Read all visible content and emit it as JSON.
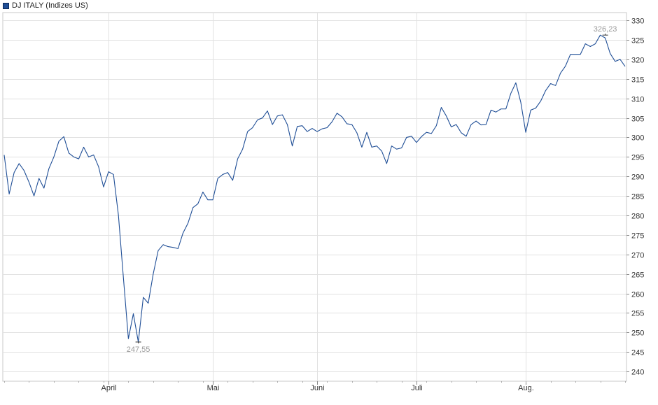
{
  "legend": {
    "label": "DJ ITALY (Indizes US)",
    "color": "#1f4e96"
  },
  "chart_data": {
    "type": "line",
    "title": "",
    "xlabel": "",
    "ylabel": "",
    "ylim": [
      237.5,
      332
    ],
    "yticks": [
      240,
      245,
      250,
      255,
      260,
      265,
      270,
      275,
      280,
      285,
      290,
      295,
      300,
      305,
      310,
      315,
      320,
      325,
      330
    ],
    "x_tick_labels": [
      {
        "label": "April",
        "index": 21
      },
      {
        "label": "Mai",
        "index": 42
      },
      {
        "label": "Juni",
        "index": 63
      },
      {
        "label": "Juli",
        "index": 83
      },
      {
        "label": "Aug.",
        "index": 105
      }
    ],
    "grid": true,
    "line_color": "#1f4e96",
    "annotations": [
      {
        "text": "326,23",
        "index": 121,
        "value": 326.23,
        "position": "above"
      },
      {
        "text": "247,55",
        "index": 27,
        "value": 247.55,
        "position": "below"
      }
    ],
    "series": [
      {
        "values": [
          295.5,
          285.5,
          291,
          293.3,
          291.5,
          288.5,
          285,
          289.5,
          287,
          292,
          295,
          299,
          300.2,
          296,
          295,
          294.5,
          297.5,
          295,
          295.5,
          292.5,
          287.3,
          291.2,
          290.5,
          280,
          264,
          248.4,
          254.8,
          247.55,
          259,
          257.5,
          265,
          271,
          272.5,
          272,
          271.8,
          271.5,
          275.5,
          278,
          282,
          283,
          286,
          284,
          284,
          289.5,
          290.5,
          291,
          289,
          294.5,
          297,
          301.5,
          302.5,
          304.5,
          305,
          306.8,
          303.3,
          305.5,
          305.8,
          303.3,
          297.8,
          302.8,
          303,
          301.5,
          302.3,
          301.5,
          302.2,
          302.5,
          304,
          306.2,
          305.3,
          303.5,
          303.3,
          301.2,
          297.5,
          301.3,
          297.5,
          297.8,
          296.5,
          293.3,
          297.8,
          297,
          297.3,
          300,
          300.3,
          298.7,
          300.2,
          301.3,
          301,
          303,
          307.7,
          305.5,
          302.7,
          303.3,
          301.2,
          300.3,
          303.3,
          304.2,
          303.2,
          303.3,
          307,
          306.5,
          307.3,
          307.3,
          311.3,
          314,
          309,
          301.3,
          307,
          307.5,
          309.3,
          312,
          313.8,
          313.3,
          316.5,
          318.3,
          321.3,
          321.3,
          321.3,
          324,
          323.3,
          324,
          326.23,
          325.5,
          321.5,
          319.5,
          320,
          318.2
        ]
      }
    ]
  }
}
